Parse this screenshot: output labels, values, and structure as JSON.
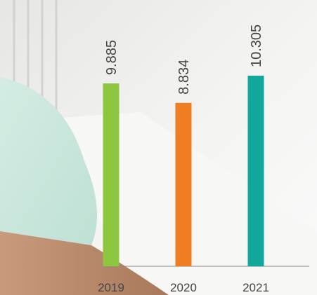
{
  "chart_data": {
    "type": "bar",
    "categories": [
      "2019",
      "2020",
      "2021"
    ],
    "values": [
      9.885,
      8.834,
      10.305
    ],
    "colors": [
      "#8dc63f",
      "#ef7d22",
      "#12a79c"
    ]
  }
}
